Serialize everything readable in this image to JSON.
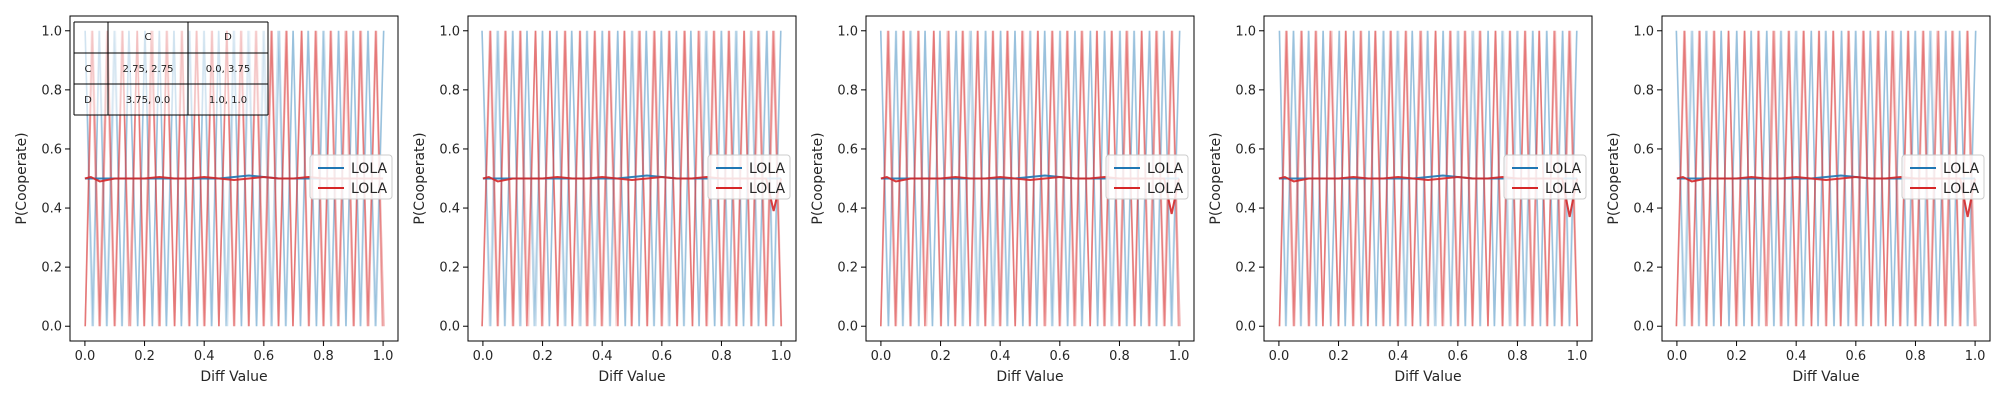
{
  "chart_data": [
    {
      "type": "line",
      "xlabel": "Diff Value",
      "ylabel": "P(Cooperate)",
      "xlim": [
        -0.05,
        1.05
      ],
      "ylim": [
        -0.05,
        1.05
      ],
      "xticks": [
        "0.0",
        "0.2",
        "0.4",
        "0.6",
        "0.8",
        "1.0"
      ],
      "yticks": [
        "0.0",
        "0.2",
        "0.4",
        "0.6",
        "0.8",
        "1.0"
      ],
      "legend": {
        "placement": "center-right",
        "entries": [
          "LOLA",
          "LOLA"
        ]
      },
      "payoff_table": {
        "col_headers": [
          "C",
          "D"
        ],
        "rows": [
          {
            "label": "C",
            "cells": [
              "2.75, 2.75",
              "0.0, 3.75"
            ]
          },
          {
            "label": "D",
            "cells": [
              "3.75, 0.0",
              "1.0, 1.0"
            ]
          }
        ]
      },
      "series": [
        {
          "name": "LOLA",
          "color": "#1f77b4",
          "mean": {
            "x": [
              0.0,
              0.05,
              0.1,
              0.15,
              0.2,
              0.25,
              0.3,
              0.35,
              0.4,
              0.45,
              0.5,
              0.55,
              0.6,
              0.65,
              0.7,
              0.75,
              0.8,
              0.85,
              0.9,
              0.95,
              1.0
            ],
            "y": [
              0.5,
              0.5,
              0.5,
              0.5,
              0.5,
              0.5,
              0.5,
              0.5,
              0.5,
              0.5,
              0.505,
              0.51,
              0.505,
              0.5,
              0.5,
              0.5,
              0.5,
              0.5,
              0.5,
              0.5,
              0.5
            ]
          }
        },
        {
          "name": "LOLA",
          "color": "#d62728",
          "mean": {
            "x": [
              0.0,
              0.02,
              0.05,
              0.1,
              0.15,
              0.2,
              0.25,
              0.3,
              0.35,
              0.4,
              0.45,
              0.5,
              0.55,
              0.6,
              0.65,
              0.7,
              0.75,
              0.8,
              0.85,
              0.9,
              0.95,
              1.0
            ],
            "y": [
              0.5,
              0.505,
              0.49,
              0.5,
              0.5,
              0.5,
              0.505,
              0.5,
              0.5,
              0.505,
              0.5,
              0.495,
              0.5,
              0.505,
              0.5,
              0.5,
              0.505,
              0.5,
              0.5,
              0.5,
              0.5,
              0.5
            ]
          }
        }
      ]
    },
    {
      "type": "line",
      "xlabel": "Diff Value",
      "ylabel": "P(Cooperate)",
      "xlim": [
        -0.05,
        1.05
      ],
      "ylim": [
        -0.05,
        1.05
      ],
      "xticks": [
        "0.0",
        "0.2",
        "0.4",
        "0.6",
        "0.8",
        "1.0"
      ],
      "yticks": [
        "0.0",
        "0.2",
        "0.4",
        "0.6",
        "0.8",
        "1.0"
      ],
      "legend": {
        "placement": "center-right",
        "entries": [
          "LOLA",
          "LOLA"
        ]
      },
      "series": [
        {
          "name": "LOLA",
          "color": "#1f77b4",
          "mean": {
            "x": [
              0.0,
              0.05,
              0.1,
              0.15,
              0.2,
              0.25,
              0.3,
              0.35,
              0.4,
              0.45,
              0.5,
              0.55,
              0.6,
              0.65,
              0.7,
              0.75,
              0.8,
              0.85,
              0.9,
              0.95,
              1.0
            ],
            "y": [
              0.5,
              0.5,
              0.5,
              0.5,
              0.5,
              0.5,
              0.5,
              0.5,
              0.5,
              0.5,
              0.505,
              0.51,
              0.505,
              0.5,
              0.5,
              0.5,
              0.5,
              0.5,
              0.5,
              0.5,
              0.5
            ]
          }
        },
        {
          "name": "LOLA",
          "color": "#d62728",
          "mean": {
            "x": [
              0.0,
              0.02,
              0.05,
              0.1,
              0.15,
              0.2,
              0.25,
              0.3,
              0.35,
              0.4,
              0.45,
              0.5,
              0.55,
              0.6,
              0.65,
              0.7,
              0.75,
              0.8,
              0.85,
              0.9,
              0.95,
              0.975,
              1.0
            ],
            "y": [
              0.5,
              0.505,
              0.49,
              0.5,
              0.5,
              0.5,
              0.505,
              0.5,
              0.5,
              0.505,
              0.5,
              0.495,
              0.5,
              0.505,
              0.5,
              0.5,
              0.505,
              0.5,
              0.5,
              0.5,
              0.5,
              0.39,
              0.5
            ]
          }
        }
      ]
    },
    {
      "type": "line",
      "xlabel": "Diff Value",
      "ylabel": "P(Cooperate)",
      "xlim": [
        -0.05,
        1.05
      ],
      "ylim": [
        -0.05,
        1.05
      ],
      "xticks": [
        "0.0",
        "0.2",
        "0.4",
        "0.6",
        "0.8",
        "1.0"
      ],
      "yticks": [
        "0.0",
        "0.2",
        "0.4",
        "0.6",
        "0.8",
        "1.0"
      ],
      "legend": {
        "placement": "center-right",
        "entries": [
          "LOLA",
          "LOLA"
        ]
      },
      "series": [
        {
          "name": "LOLA",
          "color": "#1f77b4",
          "mean": {
            "x": [
              0.0,
              0.05,
              0.1,
              0.15,
              0.2,
              0.25,
              0.3,
              0.35,
              0.4,
              0.45,
              0.5,
              0.55,
              0.6,
              0.65,
              0.7,
              0.75,
              0.8,
              0.85,
              0.9,
              0.95,
              1.0
            ],
            "y": [
              0.5,
              0.5,
              0.5,
              0.5,
              0.5,
              0.5,
              0.5,
              0.5,
              0.5,
              0.5,
              0.505,
              0.51,
              0.505,
              0.5,
              0.5,
              0.5,
              0.5,
              0.5,
              0.5,
              0.5,
              0.5
            ]
          }
        },
        {
          "name": "LOLA",
          "color": "#d62728",
          "mean": {
            "x": [
              0.0,
              0.02,
              0.05,
              0.1,
              0.15,
              0.2,
              0.25,
              0.3,
              0.35,
              0.4,
              0.45,
              0.5,
              0.55,
              0.6,
              0.65,
              0.7,
              0.75,
              0.8,
              0.85,
              0.9,
              0.95,
              0.975,
              1.0
            ],
            "y": [
              0.5,
              0.505,
              0.49,
              0.5,
              0.5,
              0.5,
              0.505,
              0.5,
              0.5,
              0.505,
              0.5,
              0.495,
              0.5,
              0.505,
              0.5,
              0.5,
              0.505,
              0.5,
              0.5,
              0.5,
              0.5,
              0.38,
              0.5
            ]
          }
        }
      ]
    },
    {
      "type": "line",
      "xlabel": "Diff Value",
      "ylabel": "P(Cooperate)",
      "xlim": [
        -0.05,
        1.05
      ],
      "ylim": [
        -0.05,
        1.05
      ],
      "xticks": [
        "0.0",
        "0.2",
        "0.4",
        "0.6",
        "0.8",
        "1.0"
      ],
      "yticks": [
        "0.0",
        "0.2",
        "0.4",
        "0.6",
        "0.8",
        "1.0"
      ],
      "legend": {
        "placement": "center-right",
        "entries": [
          "LOLA",
          "LOLA"
        ]
      },
      "series": [
        {
          "name": "LOLA",
          "color": "#1f77b4",
          "mean": {
            "x": [
              0.0,
              0.05,
              0.1,
              0.15,
              0.2,
              0.25,
              0.3,
              0.35,
              0.4,
              0.45,
              0.5,
              0.55,
              0.6,
              0.65,
              0.7,
              0.75,
              0.8,
              0.85,
              0.9,
              0.95,
              1.0
            ],
            "y": [
              0.5,
              0.5,
              0.5,
              0.5,
              0.5,
              0.5,
              0.5,
              0.5,
              0.5,
              0.5,
              0.505,
              0.51,
              0.505,
              0.5,
              0.5,
              0.5,
              0.5,
              0.5,
              0.5,
              0.5,
              0.5
            ]
          }
        },
        {
          "name": "LOLA",
          "color": "#d62728",
          "mean": {
            "x": [
              0.0,
              0.02,
              0.05,
              0.1,
              0.15,
              0.2,
              0.25,
              0.3,
              0.35,
              0.4,
              0.45,
              0.5,
              0.55,
              0.6,
              0.65,
              0.7,
              0.75,
              0.8,
              0.85,
              0.9,
              0.95,
              0.975,
              1.0
            ],
            "y": [
              0.5,
              0.505,
              0.49,
              0.5,
              0.5,
              0.5,
              0.505,
              0.5,
              0.5,
              0.505,
              0.5,
              0.495,
              0.5,
              0.505,
              0.5,
              0.5,
              0.505,
              0.5,
              0.5,
              0.5,
              0.5,
              0.37,
              0.5
            ]
          }
        }
      ]
    },
    {
      "type": "line",
      "xlabel": "Diff Value",
      "ylabel": "P(Cooperate)",
      "xlim": [
        -0.05,
        1.05
      ],
      "ylim": [
        -0.05,
        1.05
      ],
      "xticks": [
        "0.0",
        "0.2",
        "0.4",
        "0.6",
        "0.8",
        "1.0"
      ],
      "yticks": [
        "0.0",
        "0.2",
        "0.4",
        "0.6",
        "0.8",
        "1.0"
      ],
      "legend": {
        "placement": "center-right",
        "entries": [
          "LOLA",
          "LOLA"
        ]
      },
      "series": [
        {
          "name": "LOLA",
          "color": "#1f77b4",
          "mean": {
            "x": [
              0.0,
              0.05,
              0.1,
              0.15,
              0.2,
              0.25,
              0.3,
              0.35,
              0.4,
              0.45,
              0.5,
              0.55,
              0.6,
              0.65,
              0.7,
              0.75,
              0.8,
              0.85,
              0.9,
              0.95,
              1.0
            ],
            "y": [
              0.5,
              0.5,
              0.5,
              0.5,
              0.5,
              0.5,
              0.5,
              0.5,
              0.5,
              0.5,
              0.505,
              0.51,
              0.505,
              0.5,
              0.5,
              0.5,
              0.5,
              0.5,
              0.5,
              0.5,
              0.5
            ]
          }
        },
        {
          "name": "LOLA",
          "color": "#d62728",
          "mean": {
            "x": [
              0.0,
              0.02,
              0.05,
              0.1,
              0.15,
              0.2,
              0.25,
              0.3,
              0.35,
              0.4,
              0.45,
              0.5,
              0.55,
              0.6,
              0.65,
              0.7,
              0.75,
              0.8,
              0.85,
              0.9,
              0.95,
              0.975,
              1.0
            ],
            "y": [
              0.5,
              0.505,
              0.49,
              0.5,
              0.5,
              0.5,
              0.505,
              0.5,
              0.5,
              0.505,
              0.5,
              0.495,
              0.5,
              0.505,
              0.5,
              0.5,
              0.505,
              0.5,
              0.5,
              0.5,
              0.5,
              0.37,
              0.5
            ]
          }
        }
      ]
    }
  ]
}
